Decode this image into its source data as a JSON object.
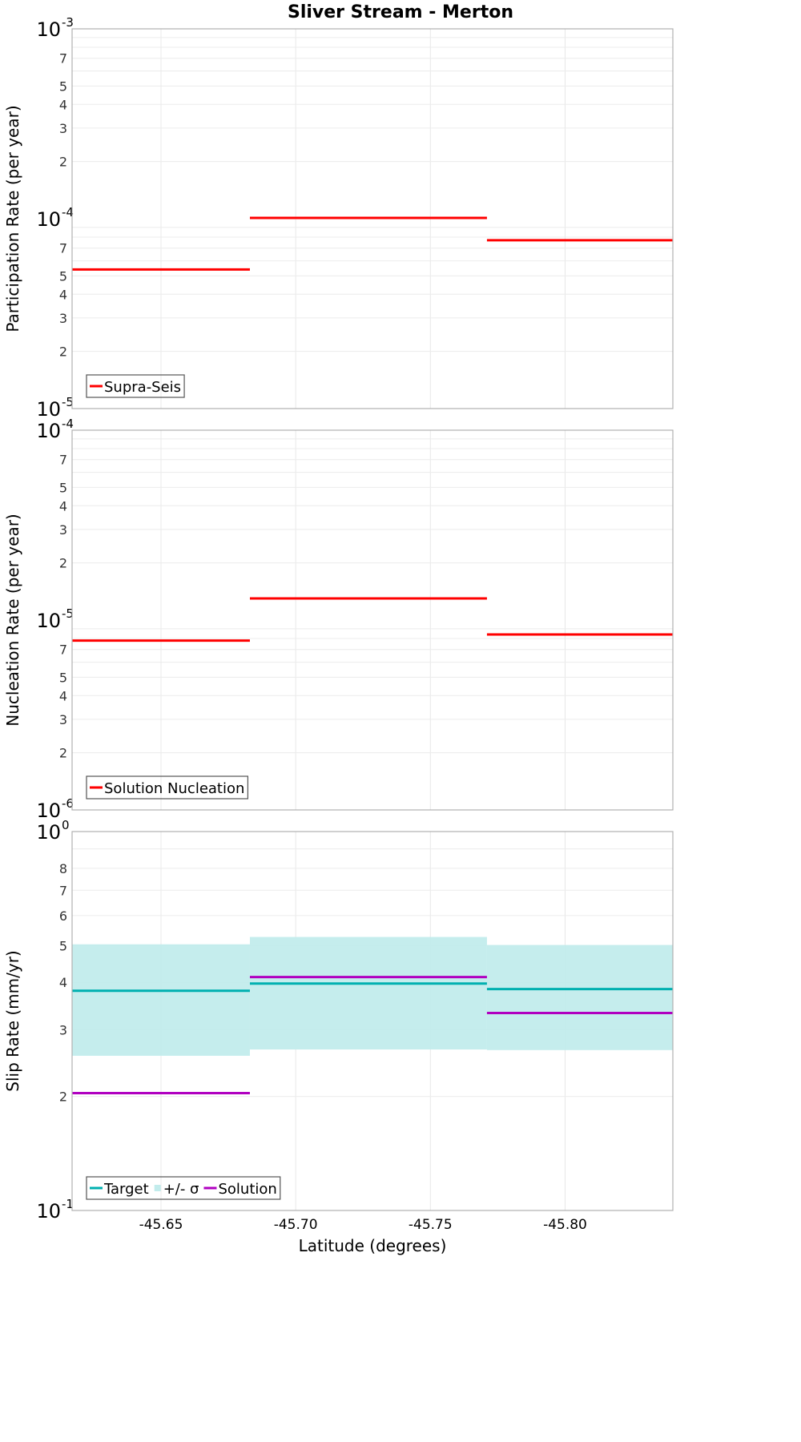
{
  "title": "Sliver Stream - Merton",
  "xaxis": {
    "label": "Latitude (degrees)",
    "ticks": [
      "-45.65",
      "-45.70",
      "-45.75",
      "-45.80"
    ]
  },
  "panels": [
    {
      "ylabel": "Participation Rate (per year)",
      "decades": [
        {
          "base": "10",
          "exp": "-3"
        },
        {
          "base": "10",
          "exp": "-4"
        },
        {
          "base": "10",
          "exp": "-5"
        }
      ],
      "minor_labels": [
        "7",
        "5",
        "4",
        "3",
        "2"
      ],
      "legend": [
        {
          "label": "Supra-Seis",
          "color": "#ff0000"
        }
      ]
    },
    {
      "ylabel": "Nucleation Rate (per year)",
      "decades": [
        {
          "base": "10",
          "exp": "-4"
        },
        {
          "base": "10",
          "exp": "-5"
        },
        {
          "base": "10",
          "exp": "-6"
        }
      ],
      "minor_labels": [
        "7",
        "5",
        "4",
        "3",
        "2"
      ],
      "legend": [
        {
          "label": "Solution Nucleation",
          "color": "#ff0000"
        }
      ]
    },
    {
      "ylabel": "Slip Rate (mm/yr)",
      "decades": [
        {
          "base": "10",
          "exp": "0"
        },
        {
          "base": "10",
          "exp": "-1"
        }
      ],
      "minor_labels": [
        "8",
        "7",
        "6",
        "5",
        "4",
        "3",
        "2"
      ],
      "legend": [
        {
          "label": "Target",
          "color": "#00b0b0"
        },
        {
          "label": "+/- σ",
          "color": "#c2ecec"
        },
        {
          "label": "Solution",
          "color": "#b000c0"
        }
      ]
    }
  ],
  "chart_data": [
    {
      "type": "line",
      "title": "Sliver Stream - Merton",
      "xlabel": "Latitude (degrees)",
      "ylabel": "Participation Rate (per year)",
      "yscale": "log",
      "ylim": [
        1e-05,
        0.001
      ],
      "xlim": [
        -45.617,
        -45.84
      ],
      "grid": true,
      "legend_position": "lower left",
      "x_bins": [
        [
          -45.617,
          -45.683
        ],
        [
          -45.683,
          -45.771
        ],
        [
          -45.771,
          -45.84
        ]
      ],
      "series": [
        {
          "name": "Supra-Seis",
          "color": "#ff0000",
          "values": [
            5.4e-05,
            0.000101,
            7.7e-05
          ]
        }
      ]
    },
    {
      "type": "line",
      "xlabel": "Latitude (degrees)",
      "ylabel": "Nucleation Rate (per year)",
      "yscale": "log",
      "ylim": [
        1e-06,
        0.0001
      ],
      "xlim": [
        -45.617,
        -45.84
      ],
      "grid": true,
      "legend_position": "lower left",
      "x_bins": [
        [
          -45.617,
          -45.683
        ],
        [
          -45.683,
          -45.771
        ],
        [
          -45.771,
          -45.84
        ]
      ],
      "series": [
        {
          "name": "Solution Nucleation",
          "color": "#ff0000",
          "values": [
            7.8e-06,
            1.3e-05,
            8.4e-06
          ]
        }
      ]
    },
    {
      "type": "line",
      "xlabel": "Latitude (degrees)",
      "ylabel": "Slip Rate (mm/yr)",
      "yscale": "log",
      "ylim": [
        0.1,
        1.0
      ],
      "xlim": [
        -45.617,
        -45.84
      ],
      "grid": true,
      "legend_position": "lower left",
      "x_bins": [
        [
          -45.617,
          -45.683
        ],
        [
          -45.683,
          -45.771
        ],
        [
          -45.771,
          -45.84
        ]
      ],
      "series": [
        {
          "name": "Target",
          "color": "#00b0b0",
          "values": [
            0.38,
            0.397,
            0.384
          ]
        },
        {
          "name": "+/- σ",
          "color": "#c2ecec",
          "type": "area",
          "lower": [
            0.256,
            0.266,
            0.265
          ],
          "upper": [
            0.504,
            0.527,
            0.502
          ]
        },
        {
          "name": "Solution",
          "color": "#b000c0",
          "values": [
            0.204,
            0.413,
            0.332
          ]
        }
      ]
    }
  ]
}
